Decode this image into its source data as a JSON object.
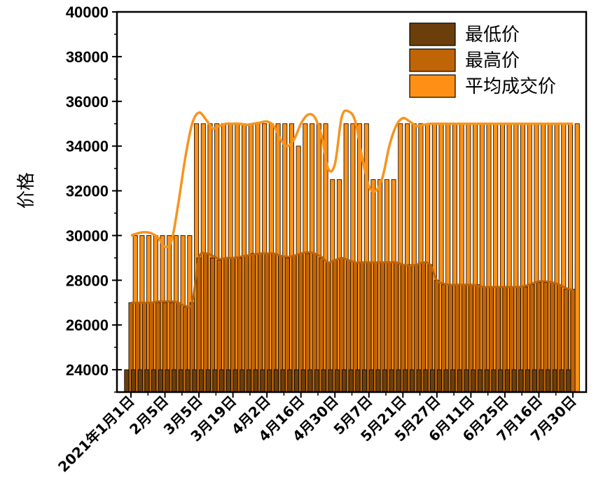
{
  "chart_data": {
    "type": "bar",
    "ylabel": "价格",
    "xlabel": "",
    "ylim": [
      23000,
      40000
    ],
    "yticks": [
      24000,
      26000,
      28000,
      30000,
      32000,
      34000,
      36000,
      38000,
      40000
    ],
    "xtick_labels": [
      "2021年1月1日",
      "2月5日",
      "3月5日",
      "3月19日",
      "4月2日",
      "4月16日",
      "4月30日",
      "5月7日",
      "5月21日",
      "5月27日",
      "6月11日",
      "6月25日",
      "7月16日",
      "7月30日"
    ],
    "xtick_index": [
      0,
      5,
      10,
      15,
      20,
      25,
      30,
      35,
      40,
      45,
      50,
      55,
      60,
      65
    ],
    "legend_position": "top-right",
    "colors": {
      "min": "#6b3f0c",
      "max": "#c06408",
      "avg": "#ff9015",
      "avg_line": "#f7941d"
    },
    "series": [
      {
        "name": "最低价",
        "key": "min",
        "values": [
          24000,
          24000,
          24000,
          24000,
          24000,
          24000,
          24000,
          24000,
          24000,
          24000,
          24000,
          24000,
          24000,
          24000,
          24000,
          24000,
          24000,
          24000,
          24000,
          24000,
          24000,
          24000,
          24000,
          24000,
          24000,
          24000,
          24000,
          24000,
          24000,
          24000,
          24000,
          24000,
          24000,
          24000,
          24000,
          24000,
          24000,
          24000,
          24000,
          24000,
          24000,
          24000,
          24000,
          24000,
          24000,
          24000,
          24000,
          24000,
          24000,
          24000,
          24000,
          24000,
          24000,
          24000,
          24000,
          24000,
          24000,
          24000,
          24000,
          24000,
          24000,
          24000,
          24000,
          24000,
          24000,
          24000
        ]
      },
      {
        "name": "最高价",
        "key": "max",
        "values": [
          27000,
          27000,
          27000,
          27000,
          27000,
          27000,
          27000,
          27000,
          26800,
          27000,
          29000,
          29200,
          29000,
          28900,
          29000,
          29000,
          29000,
          29100,
          29200,
          29200,
          29200,
          29200,
          29100,
          29000,
          29100,
          29200,
          29200,
          29200,
          29000,
          28800,
          28900,
          29000,
          28900,
          28800,
          28800,
          28800,
          28800,
          28800,
          28800,
          28800,
          28700,
          28700,
          28700,
          28800,
          28700,
          28000,
          27800,
          27800,
          27800,
          27800,
          27800,
          27800,
          27700,
          27700,
          27700,
          27700,
          27700,
          27700,
          27700,
          27800,
          27900,
          27900,
          27900,
          27800,
          27600,
          27600
        ]
      },
      {
        "name": "平均成交价",
        "key": "avg",
        "values": [
          30000,
          30000,
          30000,
          30000,
          30000,
          30000,
          30000,
          30000,
          30000,
          35000,
          35000,
          35000,
          35000,
          35000,
          35000,
          35000,
          35000,
          35000,
          35000,
          35000,
          35000,
          35000,
          35000,
          35000,
          34000,
          35000,
          35000,
          35000,
          35000,
          32500,
          32500,
          35000,
          35000,
          35000,
          35000,
          32500,
          32500,
          32500,
          32500,
          35000,
          35000,
          35000,
          35000,
          35000,
          35000,
          35000,
          35000,
          35000,
          35000,
          35000,
          35000,
          35000,
          35000,
          35000,
          35000,
          35000,
          35000,
          35000,
          35000,
          35000,
          35000,
          35000,
          35000,
          35000,
          35000,
          35000
        ]
      }
    ],
    "avg_line": [
      [
        0,
        30000
      ],
      [
        1,
        30100
      ],
      [
        2,
        30150
      ],
      [
        3,
        30100
      ],
      [
        4,
        29900
      ],
      [
        5,
        29500
      ],
      [
        6,
        29800
      ],
      [
        7,
        31500
      ],
      [
        8,
        33500
      ],
      [
        9,
        35000
      ],
      [
        10,
        35500
      ],
      [
        11,
        35200
      ],
      [
        12,
        34800
      ],
      [
        13,
        34900
      ],
      [
        14,
        35000
      ],
      [
        15,
        35000
      ],
      [
        16,
        35000
      ],
      [
        17,
        34950
      ],
      [
        18,
        35000
      ],
      [
        19,
        35050
      ],
      [
        20,
        35100
      ],
      [
        21,
        34900
      ],
      [
        22,
        34300
      ],
      [
        23,
        34000
      ],
      [
        24,
        34300
      ],
      [
        25,
        35000
      ],
      [
        26,
        35400
      ],
      [
        27,
        35300
      ],
      [
        28,
        34500
      ],
      [
        29,
        33000
      ],
      [
        30,
        33200
      ],
      [
        31,
        35300
      ],
      [
        32,
        35550
      ],
      [
        33,
        35100
      ],
      [
        34,
        33500
      ],
      [
        35,
        32200
      ],
      [
        36,
        32000
      ],
      [
        37,
        32600
      ],
      [
        38,
        34000
      ],
      [
        39,
        34900
      ],
      [
        40,
        35250
      ],
      [
        41,
        35100
      ],
      [
        42,
        34900
      ],
      [
        43,
        34950
      ],
      [
        44,
        35000
      ],
      [
        45,
        35000
      ],
      [
        46,
        35000
      ],
      [
        47,
        35000
      ],
      [
        48,
        35000
      ],
      [
        49,
        35000
      ],
      [
        50,
        35000
      ],
      [
        51,
        35000
      ],
      [
        52,
        35000
      ],
      [
        53,
        35000
      ],
      [
        54,
        35000
      ],
      [
        55,
        35000
      ],
      [
        56,
        35000
      ],
      [
        57,
        35000
      ],
      [
        58,
        35000
      ],
      [
        59,
        35000
      ],
      [
        60,
        35000
      ],
      [
        61,
        35000
      ],
      [
        62,
        35000
      ],
      [
        63,
        35000
      ],
      [
        64,
        35000
      ],
      [
        65,
        35000
      ]
    ],
    "max_line": [
      [
        0,
        27000
      ],
      [
        1,
        27000
      ],
      [
        2,
        27000
      ],
      [
        3,
        27000
      ],
      [
        4,
        27050
      ],
      [
        5,
        27050
      ],
      [
        6,
        27050
      ],
      [
        7,
        27000
      ],
      [
        8,
        26850
      ],
      [
        9,
        27000
      ],
      [
        10,
        29000
      ],
      [
        11,
        29200
      ],
      [
        12,
        29100
      ],
      [
        13,
        28950
      ],
      [
        14,
        29000
      ],
      [
        15,
        29000
      ],
      [
        16,
        29050
      ],
      [
        17,
        29100
      ],
      [
        18,
        29150
      ],
      [
        19,
        29200
      ],
      [
        20,
        29200
      ],
      [
        21,
        29200
      ],
      [
        22,
        29100
      ],
      [
        23,
        29050
      ],
      [
        24,
        29100
      ],
      [
        25,
        29200
      ],
      [
        26,
        29250
      ],
      [
        27,
        29200
      ],
      [
        28,
        29050
      ],
      [
        29,
        28800
      ],
      [
        30,
        28900
      ],
      [
        31,
        29000
      ],
      [
        32,
        28900
      ],
      [
        33,
        28800
      ],
      [
        34,
        28800
      ],
      [
        35,
        28800
      ],
      [
        36,
        28800
      ],
      [
        37,
        28800
      ],
      [
        38,
        28800
      ],
      [
        39,
        28800
      ],
      [
        40,
        28700
      ],
      [
        41,
        28650
      ],
      [
        42,
        28700
      ],
      [
        43,
        28800
      ],
      [
        44,
        28700
      ],
      [
        45,
        28000
      ],
      [
        46,
        27850
      ],
      [
        47,
        27800
      ],
      [
        48,
        27800
      ],
      [
        49,
        27800
      ],
      [
        50,
        27800
      ],
      [
        51,
        27750
      ],
      [
        52,
        27700
      ],
      [
        53,
        27700
      ],
      [
        54,
        27700
      ],
      [
        55,
        27700
      ],
      [
        56,
        27700
      ],
      [
        57,
        27700
      ],
      [
        58,
        27750
      ],
      [
        59,
        27850
      ],
      [
        60,
        27950
      ],
      [
        61,
        27950
      ],
      [
        62,
        27900
      ],
      [
        63,
        27800
      ],
      [
        64,
        27650
      ],
      [
        65,
        27550
      ]
    ]
  }
}
